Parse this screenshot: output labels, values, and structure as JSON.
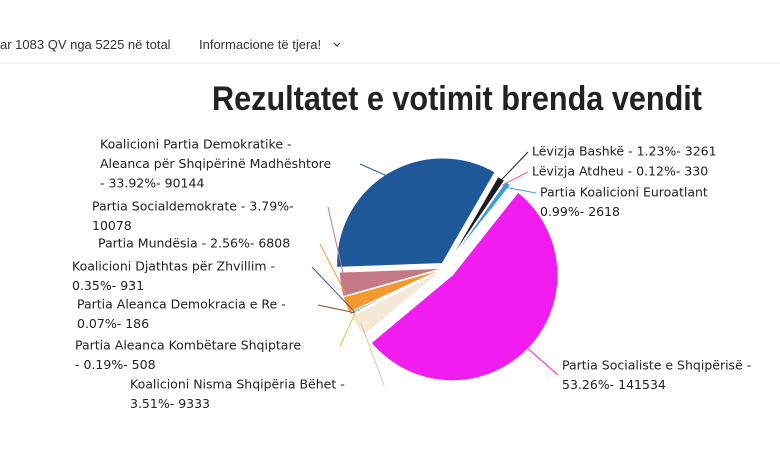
{
  "header": {
    "status": "ar 1083 QV nga 5225 në total",
    "menu": "Informacione të tjera!"
  },
  "chart_data": {
    "type": "pie",
    "title": "Rezultatet e votimit brenda vendit",
    "labels": [
      [
        "Lëvizja Bashkë - 1.23%- 3261"
      ],
      [
        "Lëvizja Atdheu - 0.12%- 330"
      ],
      [
        "Partia Koalicioni Euroatlant",
        "0.99%- 2618"
      ],
      [
        "Partia Socialiste e Shqipërisë -",
        "53.26%- 141534"
      ],
      [
        "Koalicioni Nisma Shqipëria Bëhet -",
        "3.51%- 9333"
      ],
      [
        "Partia Aleanca Kombëtare Shqiptare",
        "- 0.19%- 508"
      ],
      [
        "Partia Aleanca Demokracia e Re -",
        "0.07%- 186"
      ],
      [
        "Koalicioni Djathtas për Zhvillim -",
        "0.35%- 931"
      ],
      [
        "Partia Mundësia - 2.56%- 6808"
      ],
      [
        "Partia Socialdemokrate - 3.79%-",
        "10078"
      ],
      [
        "Koalicioni Partia Demokratike -",
        "Aleanca për Shqipërinë Madhështore",
        "- 33.92%- 90144"
      ]
    ],
    "values": [
      1.23,
      0.12,
      0.99,
      53.26,
      3.51,
      0.19,
      0.07,
      0.35,
      2.56,
      3.79,
      33.92
    ],
    "colors": [
      "#1c1c1c",
      "#e9609f",
      "#3d9ad6",
      "#f21cf0",
      "#f6e8d6",
      "#efc140",
      "#8a4b2a",
      "#3b5a9a",
      "#f29a2e",
      "#c47a86",
      "#1f5899"
    ]
  }
}
